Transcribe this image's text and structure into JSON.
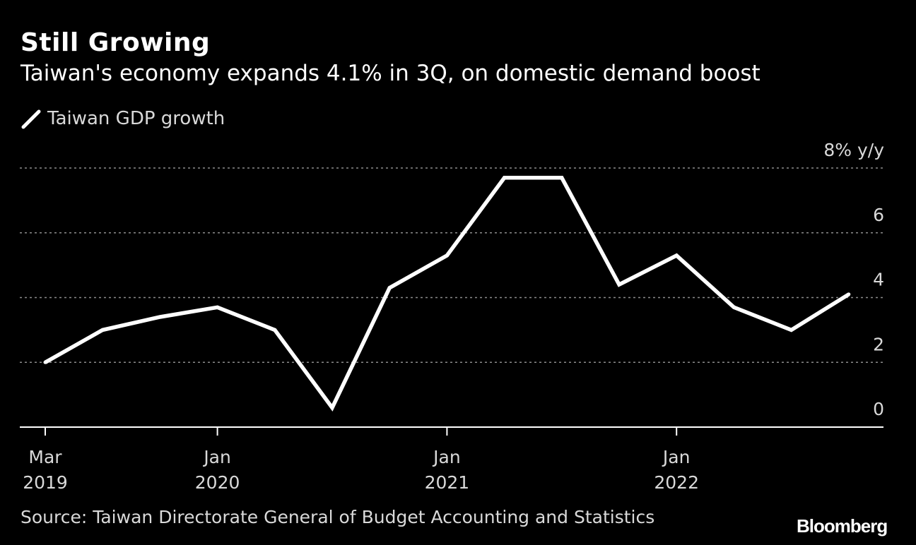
{
  "header": {
    "title": "Still Growing",
    "subtitle": "Taiwan's economy expands 4.1% in 3Q, on domestic demand boost"
  },
  "legend": {
    "series_label": "Taiwan GDP growth"
  },
  "footer": {
    "source": "Source: Taiwan Directorate General of Budget Accounting and Statistics",
    "logo_text": "Bloomberg"
  },
  "colors": {
    "background": "#000000",
    "line": "#ffffff",
    "grid": "#8c8c8c",
    "text": "#ffffff",
    "muted_text": "#d9d9d9"
  },
  "chart_data": {
    "type": "line",
    "title": "Still Growing",
    "subtitle": "Taiwan's economy expands 4.1% in 3Q, on domestic demand boost",
    "xlabel": "",
    "ylabel": "% y/y",
    "ylim": [
      0,
      8
    ],
    "yticks": [
      {
        "value": 0,
        "label": "0"
      },
      {
        "value": 2,
        "label": "2"
      },
      {
        "value": 4,
        "label": "4"
      },
      {
        "value": 6,
        "label": "6"
      },
      {
        "value": 8,
        "label": "8% y/y"
      }
    ],
    "grid": true,
    "legend_position": "top-left",
    "xticks": [
      {
        "index": 0,
        "line1": "Mar",
        "line2": "2019"
      },
      {
        "index": 3,
        "line1": "Jan",
        "line2": "2020"
      },
      {
        "index": 7,
        "line1": "Jan",
        "line2": "2021"
      },
      {
        "index": 11,
        "line1": "Jan",
        "line2": "2022"
      }
    ],
    "series": [
      {
        "name": "Taiwan GDP growth",
        "x": [
          "2019-Q1",
          "2019-Q2",
          "2019-Q3",
          "2019-Q4",
          "2020-Q1",
          "2020-Q2",
          "2020-Q3",
          "2020-Q4",
          "2021-Q1",
          "2021-Q2",
          "2021-Q3",
          "2021-Q4",
          "2022-Q1",
          "2022-Q2",
          "2022-Q3"
        ],
        "values": [
          2.0,
          3.0,
          3.4,
          3.7,
          3.0,
          0.6,
          4.3,
          5.3,
          7.7,
          7.7,
          4.4,
          5.3,
          3.7,
          3.0,
          4.1
        ]
      }
    ]
  }
}
